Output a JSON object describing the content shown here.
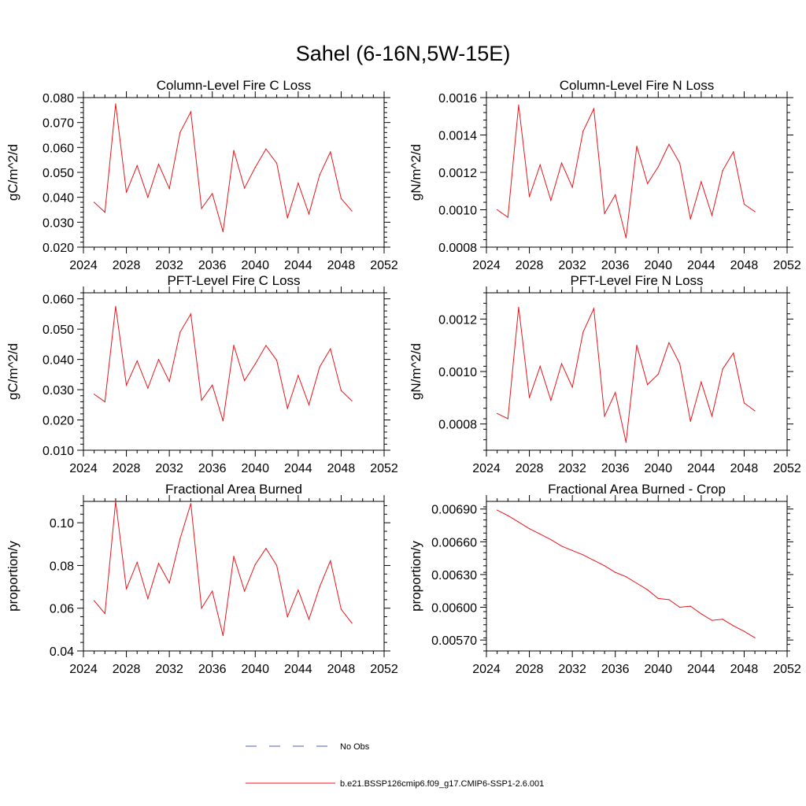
{
  "figure_title": "Sahel (6-16N,5W-15E)",
  "legend": {
    "entries": [
      {
        "label": "No Obs",
        "style": "dashed",
        "color": "#4b5fb8"
      },
      {
        "label": "b.e21.BSSP126cmip6.f09_g17.CMIP6-SSP1-2.6.001",
        "style": "solid",
        "color": "#e8151b"
      }
    ]
  },
  "chart_data": [
    {
      "type": "line",
      "title": "Column-Level Fire C Loss",
      "ylabel": "gC/m^2/d",
      "xlim": [
        2024,
        2052
      ],
      "ylim": [
        0.02,
        0.08
      ],
      "xticks": [
        "2024",
        "2028",
        "2032",
        "2036",
        "2040",
        "2044",
        "2048",
        "2052"
      ],
      "yticks": [
        "0.020",
        "0.030",
        "0.040",
        "0.050",
        "0.060",
        "0.070",
        "0.080"
      ],
      "x": [
        2025,
        2026,
        2027,
        2028,
        2029,
        2030,
        2031,
        2032,
        2033,
        2034,
        2035,
        2036,
        2037,
        2038,
        2039,
        2040,
        2041,
        2042,
        2043,
        2044,
        2045,
        2046,
        2047,
        2048,
        2049
      ],
      "series": [
        {
          "color": "#e8151b",
          "values": [
            0.038,
            0.034,
            0.0775,
            0.042,
            0.0527,
            0.04,
            0.0533,
            0.0435,
            0.066,
            0.0743,
            0.0355,
            0.0415,
            0.0262,
            0.0588,
            0.0437,
            0.052,
            0.0594,
            0.0537,
            0.0317,
            0.0457,
            0.0333,
            0.049,
            0.0582,
            0.0395,
            0.0345
          ]
        }
      ]
    },
    {
      "type": "line",
      "title": "Column-Level Fire N Loss",
      "ylabel": "gN/m^2/d",
      "xlim": [
        2024,
        2052
      ],
      "ylim": [
        0.0008,
        0.0016
      ],
      "xticks": [
        "2024",
        "2028",
        "2032",
        "2036",
        "2040",
        "2044",
        "2048",
        "2052"
      ],
      "yticks": [
        "0.0008",
        "0.0010",
        "0.0012",
        "0.0014",
        "0.0016"
      ],
      "x": [
        2025,
        2026,
        2027,
        2028,
        2029,
        2030,
        2031,
        2032,
        2033,
        2034,
        2035,
        2036,
        2037,
        2038,
        2039,
        2040,
        2041,
        2042,
        2043,
        2044,
        2045,
        2046,
        2047,
        2048,
        2049
      ],
      "series": [
        {
          "color": "#e8151b",
          "values": [
            0.001,
            0.00096,
            0.00156,
            0.00107,
            0.00124,
            0.00105,
            0.00125,
            0.00112,
            0.00142,
            0.00154,
            0.00098,
            0.00108,
            0.00085,
            0.00134,
            0.00114,
            0.00123,
            0.00135,
            0.00125,
            0.00095,
            0.00115,
            0.00097,
            0.00121,
            0.00131,
            0.00103,
            0.00099
          ]
        }
      ]
    },
    {
      "type": "line",
      "title": "PFT-Level Fire C Loss",
      "ylabel": "gC/m^2/d",
      "xlim": [
        2024,
        2052
      ],
      "ylim": [
        0.01,
        0.062
      ],
      "xticks": [
        "2024",
        "2028",
        "2032",
        "2036",
        "2040",
        "2044",
        "2048",
        "2052"
      ],
      "yticks": [
        "0.010",
        "0.020",
        "0.030",
        "0.040",
        "0.050",
        "0.060"
      ],
      "x": [
        2025,
        2026,
        2027,
        2028,
        2029,
        2030,
        2031,
        2032,
        2033,
        2034,
        2035,
        2036,
        2037,
        2038,
        2039,
        2040,
        2041,
        2042,
        2043,
        2044,
        2045,
        2046,
        2047,
        2048,
        2049
      ],
      "series": [
        {
          "color": "#e8151b",
          "values": [
            0.0285,
            0.026,
            0.0575,
            0.0315,
            0.0395,
            0.0305,
            0.04,
            0.0327,
            0.049,
            0.055,
            0.0265,
            0.0315,
            0.0197,
            0.0447,
            0.033,
            0.0385,
            0.0446,
            0.0397,
            0.0238,
            0.0347,
            0.025,
            0.0375,
            0.0435,
            0.0297,
            0.0263
          ]
        }
      ]
    },
    {
      "type": "line",
      "title": "PFT-Level Fire N Loss",
      "ylabel": "gN/m^2/d",
      "xlim": [
        2024,
        2052
      ],
      "ylim": [
        0.0007,
        0.0013
      ],
      "xticks": [
        "2024",
        "2028",
        "2032",
        "2036",
        "2040",
        "2044",
        "2048",
        "2052"
      ],
      "yticks": [
        "0.0008",
        "0.0010",
        "0.0012"
      ],
      "x": [
        2025,
        2026,
        2027,
        2028,
        2029,
        2030,
        2031,
        2032,
        2033,
        2034,
        2035,
        2036,
        2037,
        2038,
        2039,
        2040,
        2041,
        2042,
        2043,
        2044,
        2045,
        2046,
        2047,
        2048,
        2049
      ],
      "series": [
        {
          "color": "#e8151b",
          "values": [
            0.00084,
            0.00082,
            0.001245,
            0.0009,
            0.00102,
            0.00089,
            0.00103,
            0.00094,
            0.00115,
            0.00124,
            0.00083,
            0.00092,
            0.00073,
            0.0011,
            0.00095,
            0.00099,
            0.00111,
            0.00103,
            0.00081,
            0.00096,
            0.00083,
            0.00101,
            0.00107,
            0.00088,
            0.00085
          ]
        }
      ]
    },
    {
      "type": "line",
      "title": "Fractional Area Burned",
      "ylabel": "proportion/y",
      "xlim": [
        2024,
        2052
      ],
      "ylim": [
        0.04,
        0.11
      ],
      "xticks": [
        "2024",
        "2028",
        "2032",
        "2036",
        "2040",
        "2044",
        "2048",
        "2052"
      ],
      "yticks": [
        "0.04",
        "0.06",
        "0.08",
        "0.10"
      ],
      "x": [
        2025,
        2026,
        2027,
        2028,
        2029,
        2030,
        2031,
        2032,
        2033,
        2034,
        2035,
        2036,
        2037,
        2038,
        2039,
        2040,
        2041,
        2042,
        2043,
        2044,
        2045,
        2046,
        2047,
        2048,
        2049
      ],
      "series": [
        {
          "color": "#e8151b",
          "values": [
            0.0635,
            0.0575,
            0.11,
            0.069,
            0.0815,
            0.0645,
            0.081,
            0.0718,
            0.0925,
            0.109,
            0.06,
            0.068,
            0.0472,
            0.0843,
            0.068,
            0.0805,
            0.088,
            0.08,
            0.056,
            0.0685,
            0.0548,
            0.07,
            0.0822,
            0.0595,
            0.053
          ]
        }
      ]
    },
    {
      "type": "line",
      "title": "Fractional Area Burned - Crop",
      "ylabel": "proportion/y",
      "xlim": [
        2024,
        2052
      ],
      "ylim": [
        0.0056,
        0.00697
      ],
      "xticks": [
        "2024",
        "2028",
        "2032",
        "2036",
        "2040",
        "2044",
        "2048",
        "2052"
      ],
      "yticks": [
        "0.00570",
        "0.00600",
        "0.00630",
        "0.00660",
        "0.00690"
      ],
      "x": [
        2025,
        2026,
        2027,
        2028,
        2029,
        2030,
        2031,
        2032,
        2033,
        2034,
        2035,
        2036,
        2037,
        2038,
        2039,
        2040,
        2041,
        2042,
        2043,
        2044,
        2045,
        2046,
        2047,
        2048,
        2049
      ],
      "series": [
        {
          "color": "#e8151b",
          "values": [
            0.00689,
            0.00684,
            0.00678,
            0.00672,
            0.00667,
            0.00662,
            0.00656,
            0.00652,
            0.00648,
            0.00643,
            0.00638,
            0.00632,
            0.00628,
            0.00622,
            0.00616,
            0.00608,
            0.00607,
            0.006,
            0.00601,
            0.00594,
            0.00588,
            0.00589,
            0.00583,
            0.00578,
            0.00572
          ]
        }
      ]
    }
  ]
}
